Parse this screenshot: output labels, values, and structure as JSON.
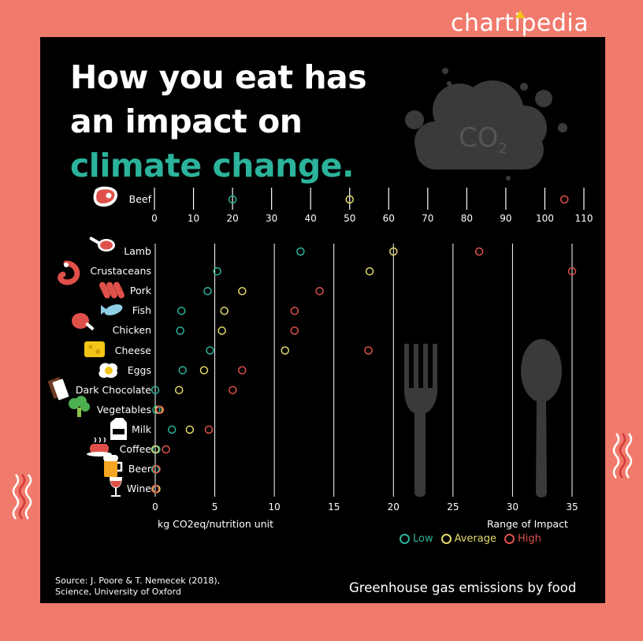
{
  "brand": {
    "name": "chartipedia"
  },
  "title": {
    "line1": "How you eat has",
    "line2": "an impact on",
    "line3": "climate change."
  },
  "cloud_label": "CO2",
  "source": {
    "line1": "Source: J. Poore & T. Nemecek (2018),",
    "line2": "Science, University of Oxford"
  },
  "footer_title": "Greenhouse gas emissions by food",
  "colors": {
    "background": "#f07a6c",
    "panel": "#000000",
    "accent": "#2bb39b",
    "low": "#2bb39b",
    "average": "#e4d96a",
    "high": "#e0504a",
    "silhouette": "#3a3a3a"
  },
  "chart_data": [
    {
      "type": "scatter",
      "title": "Beef",
      "categories": [
        "Beef"
      ],
      "xlim": [
        0,
        110
      ],
      "xticks": [
        "0",
        "10",
        "20",
        "30",
        "40",
        "50",
        "60",
        "70",
        "80",
        "90",
        "100",
        "110"
      ],
      "series": [
        {
          "name": "Low",
          "values": [
            20
          ]
        },
        {
          "name": "Average",
          "values": [
            50
          ]
        },
        {
          "name": "High",
          "values": [
            105
          ]
        }
      ]
    },
    {
      "type": "scatter",
      "title": "Greenhouse gas emissions by food",
      "categories": [
        "Lamb",
        "Crustaceans",
        "Pork",
        "Fish",
        "Chicken",
        "Cheese",
        "Eggs",
        "Dark Chocolate",
        "Vegetables",
        "Milk",
        "Coffee",
        "Beer",
        "Wine"
      ],
      "xlabel": "kg CO2eq/nutrition unit",
      "legend_title": "Range of Impact",
      "xlim": [
        0,
        35
      ],
      "xticks": [
        "0",
        "5",
        "10",
        "15",
        "20",
        "25",
        "30",
        "35"
      ],
      "series": [
        {
          "name": "Low",
          "values": [
            12.2,
            5.2,
            4.4,
            2.2,
            2.1,
            4.6,
            2.3,
            0.0,
            0.1,
            1.4,
            0.1,
            0.0,
            0.0
          ]
        },
        {
          "name": "Average",
          "values": [
            20.0,
            18.0,
            7.3,
            5.8,
            5.6,
            10.9,
            4.1,
            2.0,
            0.3,
            2.9,
            0.0,
            0.1,
            0.1
          ]
        },
        {
          "name": "High",
          "values": [
            27.2,
            35.0,
            13.8,
            11.7,
            11.7,
            17.9,
            7.3,
            6.5,
            0.4,
            4.5,
            0.9,
            0.1,
            0.0
          ]
        }
      ]
    }
  ]
}
